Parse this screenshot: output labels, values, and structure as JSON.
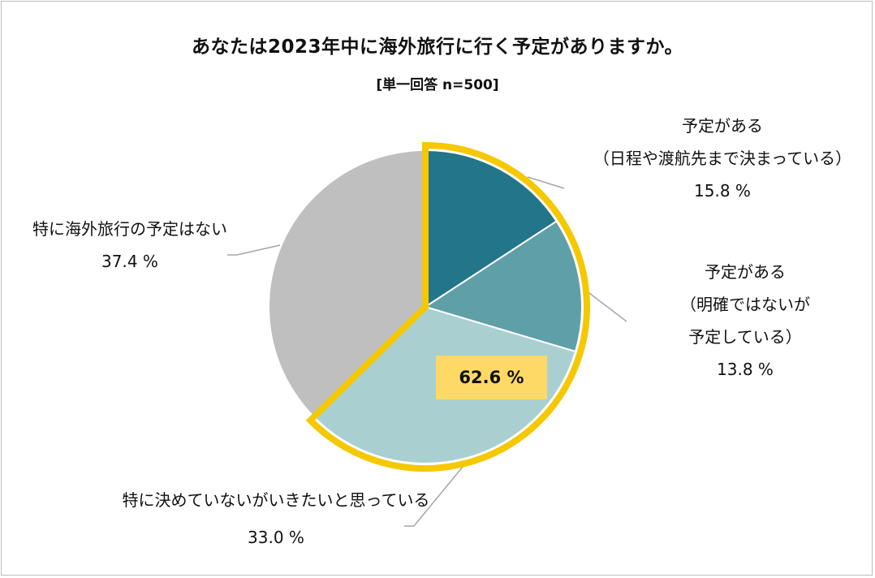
{
  "chart_data": {
    "type": "pie",
    "title": "あなたは2023年中に海外旅行に行く予定がありますか。",
    "subtitle": "[単一回答 n=500]",
    "unit": "%",
    "slices": [
      {
        "label_lines": [
          "予定がある",
          "（日程や渡航先まで決まっている）"
        ],
        "value": 15.8,
        "value_text": "15.8 %",
        "color": "#23758a"
      },
      {
        "label_lines": [
          "予定がある",
          "（明確ではないが",
          "予定している）"
        ],
        "value": 13.8,
        "value_text": "13.8 %",
        "color": "#5f9fa8"
      },
      {
        "label_lines": [
          "特に決めていないがいきたいと思っている"
        ],
        "value": 33.0,
        "value_text": "33.0 %",
        "color": "#a9cfd1"
      },
      {
        "label_lines": [
          "特に海外旅行の予定はない"
        ],
        "value": 37.4,
        "value_text": "37.4 %",
        "color": "#bfbfbf"
      }
    ],
    "highlight": {
      "value": 62.6,
      "text": "62.6 %",
      "color": "#ffd966",
      "outline_color": "#f5c800"
    },
    "leader_line_color": "#a6a6a6"
  }
}
